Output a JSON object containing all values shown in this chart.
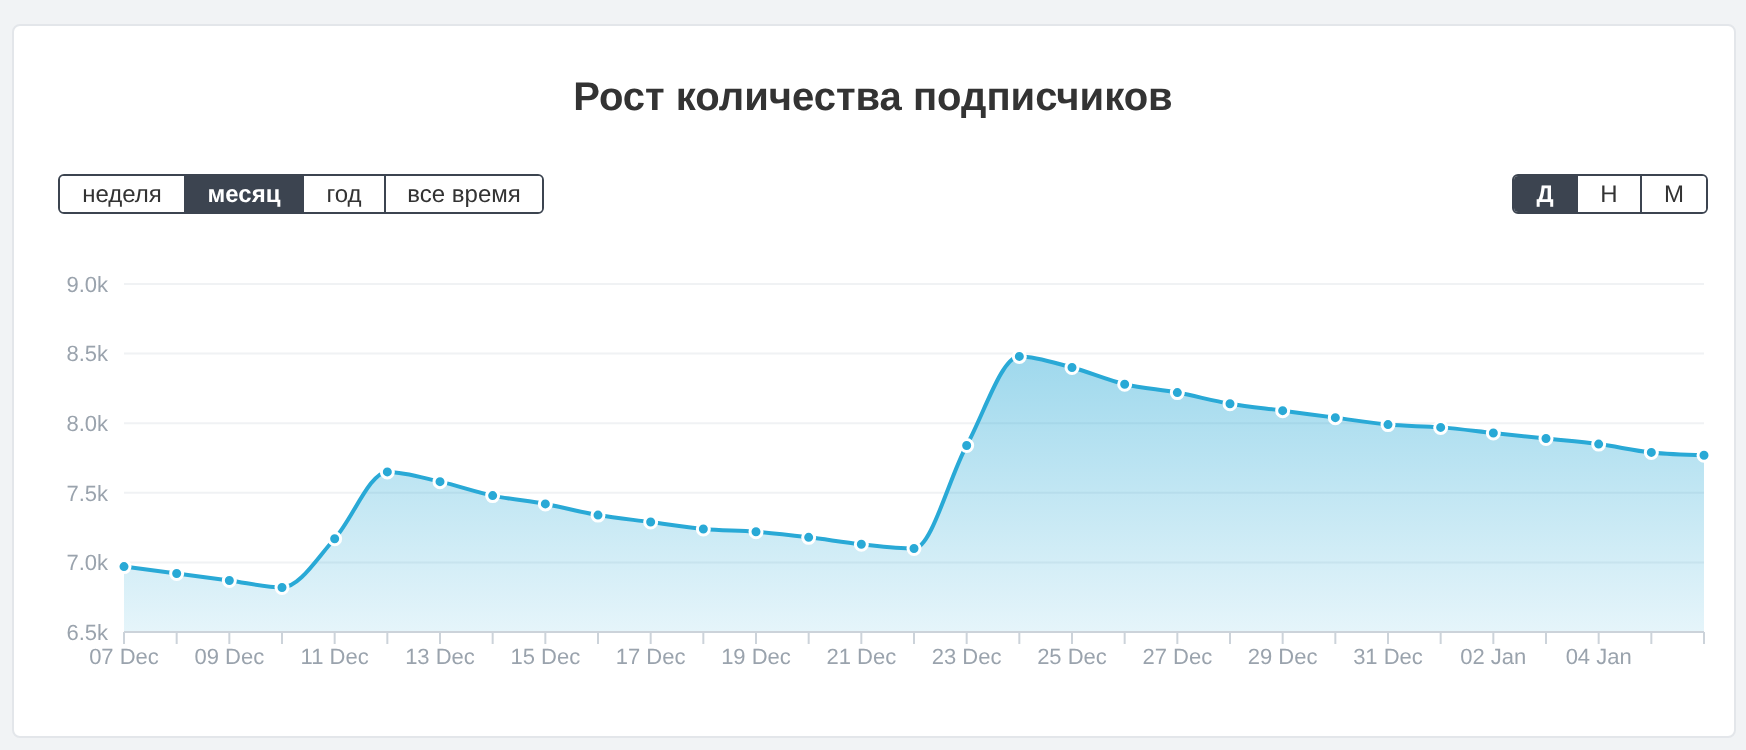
{
  "chart_data": {
    "type": "area",
    "title": "Рост количества подписчиков",
    "annotations": [
      "неделя",
      "месяц",
      "год",
      "все время",
      "Д",
      "Н",
      "М"
    ],
    "categories": [
      "07 Dec",
      null,
      "09 Dec",
      null,
      "11 Dec",
      null,
      "13 Dec",
      null,
      "15 Dec",
      null,
      "17 Dec",
      null,
      "19 Dec",
      null,
      "21 Dec",
      null,
      "23 Dec",
      null,
      "25 Dec",
      null,
      "27 Dec",
      null,
      "29 Dec",
      null,
      "31 Dec",
      null,
      "02 Jan",
      null,
      "04 Jan",
      null,
      null
    ],
    "series": [
      {
        "color": "#29a9d6",
        "values": [
          6970,
          6920,
          6870,
          6820,
          7170,
          7650,
          7580,
          7480,
          7420,
          7340,
          7290,
          7240,
          7220,
          7180,
          7130,
          7100,
          7840,
          8480,
          8400,
          8280,
          8220,
          8140,
          8090,
          8040,
          7990,
          7970,
          7930,
          7890,
          7850,
          7790,
          7770
        ]
      }
    ],
    "ylim": [
      6500,
      9000
    ],
    "yticks": [
      {
        "value": 6500,
        "label": "6.5k"
      },
      {
        "value": 7000,
        "label": "7.0k"
      },
      {
        "value": 7500,
        "label": "7.5k"
      },
      {
        "value": 8000,
        "label": "8.0k"
      },
      {
        "value": 8500,
        "label": "8.5k"
      },
      {
        "value": 9000,
        "label": "9.0k"
      }
    ],
    "grid": "y",
    "marker": "circle",
    "line_style": "solid"
  }
}
